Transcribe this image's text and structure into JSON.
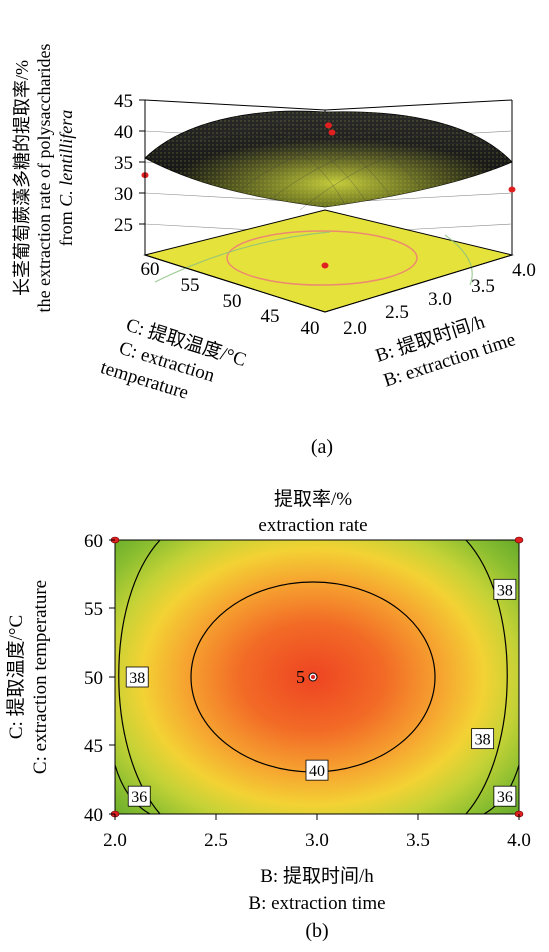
{
  "chart_data": [
    {
      "type": "surface3d",
      "panel_label": "(a)",
      "zlabel_lines": [
        "长茎葡萄蕨藻多糖的提取率/%",
        "the extraction rate of polysaccharides",
        "from ",
        "C. lentillifera"
      ],
      "xlabel_lines": [
        "B: 提取时间/h",
        "B: extraction time"
      ],
      "ylabel_lines": [
        "C: 提取温度/°C",
        "C: extraction",
        "temperature"
      ],
      "x_ticks": [
        "2.0",
        "2.5",
        "3.0",
        "3.5",
        "4.0"
      ],
      "y_ticks": [
        "40",
        "45",
        "50",
        "55",
        "60"
      ],
      "z_ticks": [
        "25",
        "30",
        "35",
        "40",
        "45"
      ],
      "xlim": [
        2.0,
        4.0
      ],
      "ylim": [
        40,
        60
      ],
      "zlim": [
        25,
        45
      ],
      "design_points": [
        {
          "x": 3.0,
          "y": 50,
          "z": 42.5
        },
        {
          "x": 2.0,
          "y": 60,
          "z": 35.3
        },
        {
          "x": 4.0,
          "y": 40,
          "z": 35.0
        },
        {
          "x": 2.0,
          "y": 40,
          "z": 31.0
        },
        {
          "x": 4.0,
          "y": 60,
          "z": 35.0
        }
      ],
      "colors": {
        "surface": "#1c1c1c",
        "mesh_highlight": "#c8d23a",
        "floor": "#e8e23a",
        "contour": "#e8896a",
        "point": "#e02020"
      }
    },
    {
      "type": "contour",
      "panel_label": "(b)",
      "title_lines": [
        "提取率/%",
        "extraction rate"
      ],
      "xlabel_lines": [
        "B: 提取时间/h",
        "B: extraction time"
      ],
      "ylabel_lines": [
        "C: 提取温度/°C",
        "C: extraction temperature"
      ],
      "x_ticks": [
        "2.0",
        "2.5",
        "3.0",
        "3.5",
        "4.0"
      ],
      "y_ticks": [
        "40",
        "45",
        "50",
        "55",
        "60"
      ],
      "xlim": [
        2.0,
        4.0
      ],
      "ylim": [
        40,
        60
      ],
      "contour_levels": [
        36,
        38,
        40
      ],
      "contour_labels": [
        {
          "text": "38",
          "x": 3.93,
          "y": 56.4
        },
        {
          "text": "38",
          "x": 2.11,
          "y": 50.0
        },
        {
          "text": "38",
          "x": 3.82,
          "y": 45.5
        },
        {
          "text": "40",
          "x": 3.0,
          "y": 43.2
        },
        {
          "text": "36",
          "x": 2.12,
          "y": 41.3
        },
        {
          "text": "36",
          "x": 3.93,
          "y": 41.3
        }
      ],
      "center_point": {
        "x": 3.0,
        "y": 50,
        "label": "5"
      },
      "design_points": [
        {
          "x": 2.0,
          "y": 60
        },
        {
          "x": 4.0,
          "y": 60
        },
        {
          "x": 2.0,
          "y": 40
        },
        {
          "x": 4.0,
          "y": 40
        }
      ],
      "colors": {
        "hot": "#ee4422",
        "mid": "#f8c830",
        "cool": "#6aae2c",
        "point": "#e02020"
      }
    }
  ]
}
